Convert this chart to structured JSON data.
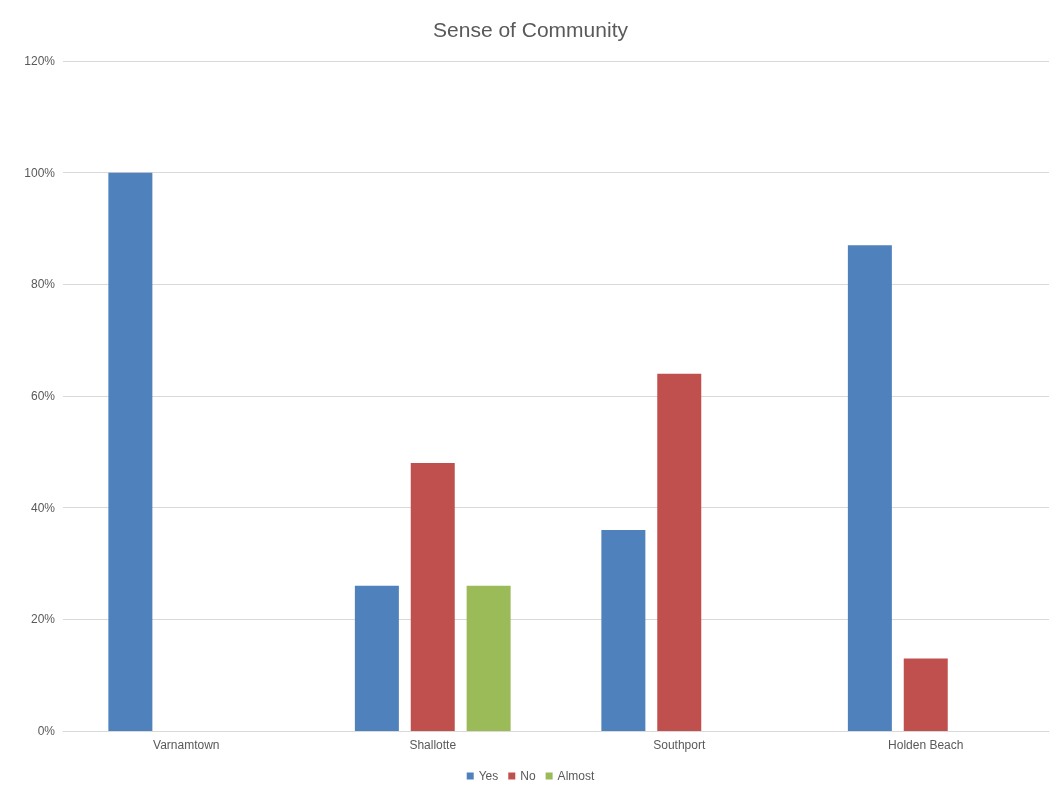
{
  "chart_data": {
    "type": "bar",
    "title": "Sense of Community",
    "categories": [
      "Varnamtown",
      "Shallotte",
      "Southport",
      "Holden Beach"
    ],
    "series": [
      {
        "name": "Yes",
        "color": "#4f81bd",
        "values": [
          100,
          26,
          36,
          87
        ]
      },
      {
        "name": "No",
        "color": "#c0504d",
        "values": [
          0,
          48,
          64,
          13
        ]
      },
      {
        "name": "Almost",
        "color": "#9bbb59",
        "values": [
          0,
          26,
          0,
          0
        ]
      }
    ],
    "ylim": [
      0,
      120
    ],
    "yticks": [
      {
        "value": 0,
        "label": "0%"
      },
      {
        "value": 20,
        "label": "20%"
      },
      {
        "value": 40,
        "label": "40%"
      },
      {
        "value": 60,
        "label": "60%"
      },
      {
        "value": 80,
        "label": "80%"
      },
      {
        "value": 100,
        "label": "100%"
      },
      {
        "value": 120,
        "label": "120%"
      }
    ],
    "grid": "y",
    "legend": "bottom"
  }
}
